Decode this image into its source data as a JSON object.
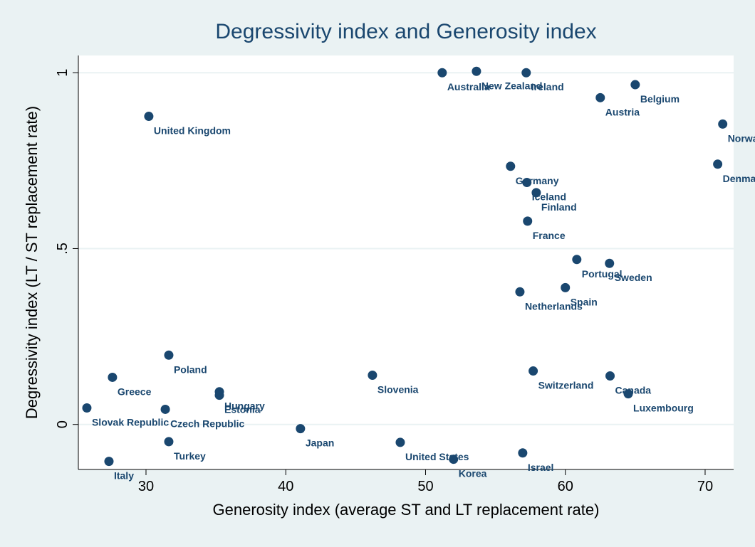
{
  "chart_data": {
    "type": "scatter",
    "title": "Degressivity index and Generosity index",
    "x_label": "Generosity index (average ST and LT replacement rate)",
    "y_label": "Degressivity index (LT / ST replacement rate)",
    "labels": [
      "Australia",
      "New Zealand",
      "Ireland",
      "Belgium",
      "Austria",
      "United Kingdom",
      "Norway",
      "Denmark",
      "Germany",
      "Iceland",
      "Finland",
      "France",
      "Portugal",
      "Sweden",
      "Spain",
      "Netherlands",
      "Poland",
      "Greece",
      "Slovenia",
      "Switzerland",
      "Canada",
      "Luxembourg",
      "Hungary",
      "Estonia",
      "Slovak Republic",
      "Czech Republic",
      "Japan",
      "Turkey",
      "United States",
      "Israel",
      "Korea",
      "Italy"
    ],
    "x": [
      51.19,
      53.64,
      57.2,
      65.0,
      62.5,
      30.2,
      71.26,
      70.9,
      56.08,
      57.25,
      57.92,
      57.3,
      60.82,
      63.16,
      60.0,
      56.75,
      31.63,
      27.6,
      46.2,
      57.7,
      63.2,
      64.5,
      35.25,
      35.25,
      25.77,
      31.38,
      41.05,
      31.63,
      48.19,
      56.95,
      52.0,
      27.35
    ],
    "y": [
      1.0,
      1.004,
      1.0,
      0.966,
      0.929,
      0.876,
      0.854,
      0.74,
      0.734,
      0.688,
      0.659,
      0.578,
      0.469,
      0.458,
      0.389,
      0.377,
      0.197,
      0.134,
      0.14,
      0.152,
      0.138,
      0.087,
      0.093,
      0.083,
      0.047,
      0.043,
      -0.012,
      -0.049,
      -0.051,
      -0.081,
      -0.099,
      -0.105
    ],
    "color": "#1a476f",
    "xlim": [
      25.16,
      72.04
    ],
    "ylim": [
      -0.128,
      1.049
    ],
    "xticks": [
      30,
      40,
      50,
      60,
      70
    ],
    "yticks": [
      0,
      {
        "value": 0.5,
        "label": ".5"
      },
      1
    ],
    "grid": true
  }
}
